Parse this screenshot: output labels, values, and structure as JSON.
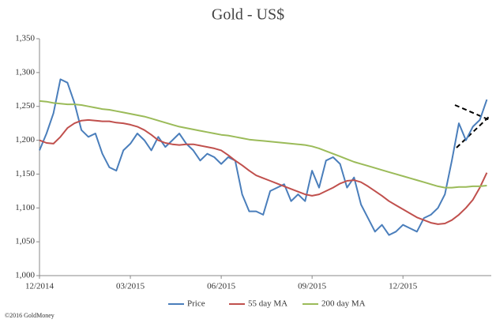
{
  "chart_data": {
    "type": "line",
    "title": "Gold - US$",
    "categories": [
      "12/2014",
      null,
      null,
      null,
      null,
      null,
      null,
      null,
      null,
      null,
      null,
      null,
      null,
      "03/2015",
      null,
      null,
      null,
      null,
      null,
      null,
      null,
      null,
      null,
      null,
      null,
      null,
      "06/2015",
      null,
      null,
      null,
      null,
      null,
      null,
      null,
      null,
      null,
      null,
      null,
      null,
      "09/2015",
      null,
      null,
      null,
      null,
      null,
      null,
      null,
      null,
      null,
      null,
      null,
      null,
      "12/2015",
      null,
      null,
      null,
      null,
      null,
      null,
      null,
      null,
      null,
      null,
      null,
      null
    ],
    "series": [
      {
        "name": "Price",
        "color": "#4a7ebb",
        "values": [
          1185,
          1210,
          1240,
          1290,
          1285,
          1255,
          1215,
          1205,
          1210,
          1180,
          1160,
          1155,
          1185,
          1195,
          1210,
          1200,
          1185,
          1205,
          1190,
          1200,
          1210,
          1195,
          1185,
          1170,
          1180,
          1175,
          1165,
          1175,
          1170,
          1120,
          1095,
          1095,
          1090,
          1125,
          1130,
          1135,
          1110,
          1120,
          1110,
          1155,
          1130,
          1170,
          1175,
          1165,
          1130,
          1145,
          1105,
          1085,
          1065,
          1075,
          1060,
          1065,
          1075,
          1070,
          1065,
          1085,
          1090,
          1100,
          1120,
          1170,
          1225,
          1200,
          1220,
          1230,
          1260
        ]
      },
      {
        "name": "55 day MA",
        "color": "#c0504d",
        "values": [
          1200,
          1196,
          1195,
          1205,
          1218,
          1225,
          1229,
          1230,
          1229,
          1228,
          1228,
          1226,
          1225,
          1223,
          1220,
          1215,
          1208,
          1200,
          1196,
          1194,
          1193,
          1194,
          1194,
          1192,
          1190,
          1188,
          1185,
          1178,
          1170,
          1163,
          1155,
          1148,
          1144,
          1140,
          1136,
          1132,
          1128,
          1124,
          1120,
          1118,
          1120,
          1125,
          1130,
          1136,
          1140,
          1141,
          1138,
          1132,
          1125,
          1118,
          1110,
          1104,
          1098,
          1092,
          1086,
          1082,
          1078,
          1076,
          1077,
          1082,
          1090,
          1100,
          1112,
          1130,
          1152
        ]
      },
      {
        "name": "200 day MA",
        "color": "#9bbb59",
        "values": [
          1258,
          1257,
          1255,
          1254,
          1253,
          1253,
          1252,
          1250,
          1248,
          1246,
          1245,
          1243,
          1241,
          1239,
          1237,
          1235,
          1232,
          1229,
          1226,
          1223,
          1220,
          1218,
          1216,
          1214,
          1212,
          1210,
          1208,
          1207,
          1205,
          1203,
          1201,
          1200,
          1199,
          1198,
          1197,
          1196,
          1195,
          1194,
          1193,
          1191,
          1188,
          1184,
          1180,
          1176,
          1172,
          1168,
          1165,
          1162,
          1159,
          1156,
          1153,
          1150,
          1147,
          1144,
          1141,
          1138,
          1135,
          1132,
          1130,
          1130,
          1131,
          1131,
          1132,
          1132,
          1133
        ]
      }
    ],
    "ylim": [
      1000,
      1350
    ],
    "yticks": [
      {
        "value": 1000,
        "label": "1,000"
      },
      {
        "value": 1050,
        "label": "1,050"
      },
      {
        "value": 1100,
        "label": "1,100"
      },
      {
        "value": 1150,
        "label": "1,150"
      },
      {
        "value": 1200,
        "label": "1,200"
      },
      {
        "value": 1250,
        "label": "1,250"
      },
      {
        "value": 1300,
        "label": "1,300"
      },
      {
        "value": 1350,
        "label": "1,350"
      }
    ],
    "legend": "bottom",
    "credit": "©2016 GoldMoney"
  }
}
